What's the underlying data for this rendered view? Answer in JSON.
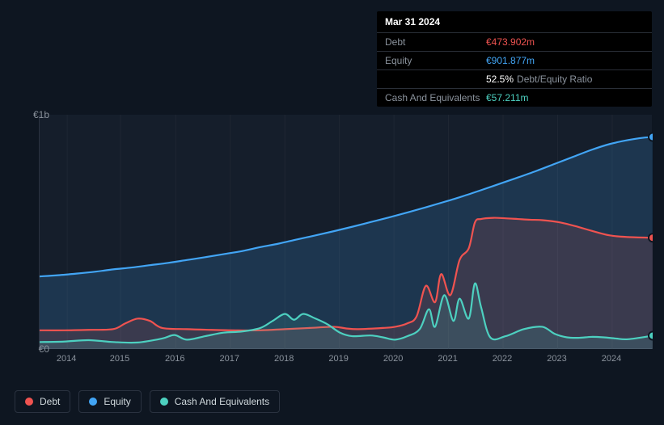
{
  "tooltip": {
    "date": "Mar 31 2024",
    "rows": [
      {
        "label": "Debt",
        "value": "€473.902m",
        "cls": "val-debt"
      },
      {
        "label": "Equity",
        "value": "€901.877m",
        "cls": "val-equity"
      },
      {
        "label": "",
        "value": "52.5%",
        "suffix": "Debt/Equity Ratio",
        "cls": "val-ratio"
      },
      {
        "label": "Cash And Equivalents",
        "value": "€57.211m",
        "cls": "val-cash"
      }
    ]
  },
  "chart": {
    "type": "area-line",
    "background_color": "#151e2b",
    "page_background": "#0e1621",
    "grid_color": "#1f2733",
    "y_axis": {
      "min": 0,
      "max": 1000,
      "labels": [
        {
          "v": 1000,
          "text": "€1b"
        },
        {
          "v": 0,
          "text": "€0"
        }
      ]
    },
    "x_axis": {
      "labels": [
        "2014",
        "2015",
        "2016",
        "2017",
        "2018",
        "2019",
        "2020",
        "2021",
        "2022",
        "2023",
        "2024"
      ],
      "positions": [
        0.045,
        0.132,
        0.222,
        0.311,
        0.4,
        0.489,
        0.578,
        0.667,
        0.756,
        0.845,
        0.934
      ]
    },
    "series": [
      {
        "name": "Equity",
        "color": "#42a5f5",
        "fill": "rgba(66,165,245,0.18)",
        "line_width": 2.2,
        "end_marker": true,
        "points": [
          [
            0.0,
            310
          ],
          [
            0.03,
            315
          ],
          [
            0.06,
            322
          ],
          [
            0.09,
            330
          ],
          [
            0.12,
            340
          ],
          [
            0.15,
            348
          ],
          [
            0.18,
            358
          ],
          [
            0.21,
            368
          ],
          [
            0.24,
            380
          ],
          [
            0.27,
            392
          ],
          [
            0.3,
            405
          ],
          [
            0.33,
            418
          ],
          [
            0.36,
            435
          ],
          [
            0.39,
            450
          ],
          [
            0.42,
            468
          ],
          [
            0.45,
            485
          ],
          [
            0.48,
            503
          ],
          [
            0.51,
            522
          ],
          [
            0.54,
            542
          ],
          [
            0.57,
            562
          ],
          [
            0.6,
            583
          ],
          [
            0.63,
            605
          ],
          [
            0.66,
            628
          ],
          [
            0.69,
            652
          ],
          [
            0.72,
            678
          ],
          [
            0.75,
            705
          ],
          [
            0.78,
            732
          ],
          [
            0.81,
            760
          ],
          [
            0.84,
            790
          ],
          [
            0.87,
            820
          ],
          [
            0.9,
            850
          ],
          [
            0.93,
            875
          ],
          [
            0.96,
            892
          ],
          [
            0.985,
            902
          ],
          [
            1.0,
            905
          ]
        ]
      },
      {
        "name": "Debt",
        "color": "#ef5350",
        "fill": "rgba(239,83,80,0.14)",
        "line_width": 2.2,
        "end_marker": true,
        "points": [
          [
            0.0,
            80
          ],
          [
            0.04,
            80
          ],
          [
            0.08,
            82
          ],
          [
            0.12,
            85
          ],
          [
            0.14,
            110
          ],
          [
            0.16,
            130
          ],
          [
            0.18,
            120
          ],
          [
            0.2,
            90
          ],
          [
            0.24,
            85
          ],
          [
            0.28,
            82
          ],
          [
            0.32,
            80
          ],
          [
            0.36,
            80
          ],
          [
            0.4,
            85
          ],
          [
            0.44,
            90
          ],
          [
            0.48,
            95
          ],
          [
            0.5,
            88
          ],
          [
            0.52,
            85
          ],
          [
            0.56,
            90
          ],
          [
            0.58,
            95
          ],
          [
            0.6,
            110
          ],
          [
            0.615,
            140
          ],
          [
            0.63,
            270
          ],
          [
            0.645,
            200
          ],
          [
            0.655,
            320
          ],
          [
            0.67,
            230
          ],
          [
            0.685,
            380
          ],
          [
            0.7,
            430
          ],
          [
            0.71,
            540
          ],
          [
            0.72,
            555
          ],
          [
            0.74,
            560
          ],
          [
            0.76,
            558
          ],
          [
            0.78,
            555
          ],
          [
            0.8,
            552
          ],
          [
            0.82,
            550
          ],
          [
            0.85,
            540
          ],
          [
            0.88,
            520
          ],
          [
            0.9,
            505
          ],
          [
            0.93,
            485
          ],
          [
            0.96,
            478
          ],
          [
            1.0,
            475
          ]
        ]
      },
      {
        "name": "Cash And Equivalents",
        "color": "#4dd0c0",
        "fill": "rgba(77,208,192,0.14)",
        "line_width": 2.2,
        "end_marker": true,
        "points": [
          [
            0.0,
            30
          ],
          [
            0.04,
            32
          ],
          [
            0.08,
            38
          ],
          [
            0.12,
            30
          ],
          [
            0.16,
            28
          ],
          [
            0.2,
            45
          ],
          [
            0.22,
            60
          ],
          [
            0.24,
            40
          ],
          [
            0.27,
            55
          ],
          [
            0.3,
            70
          ],
          [
            0.33,
            75
          ],
          [
            0.36,
            90
          ],
          [
            0.38,
            120
          ],
          [
            0.4,
            150
          ],
          [
            0.415,
            125
          ],
          [
            0.43,
            150
          ],
          [
            0.45,
            130
          ],
          [
            0.47,
            105
          ],
          [
            0.49,
            70
          ],
          [
            0.51,
            55
          ],
          [
            0.54,
            58
          ],
          [
            0.56,
            50
          ],
          [
            0.58,
            40
          ],
          [
            0.6,
            55
          ],
          [
            0.62,
            85
          ],
          [
            0.635,
            170
          ],
          [
            0.645,
            95
          ],
          [
            0.66,
            230
          ],
          [
            0.675,
            120
          ],
          [
            0.685,
            215
          ],
          [
            0.7,
            130
          ],
          [
            0.71,
            280
          ],
          [
            0.72,
            180
          ],
          [
            0.735,
            50
          ],
          [
            0.76,
            55
          ],
          [
            0.79,
            85
          ],
          [
            0.82,
            95
          ],
          [
            0.84,
            65
          ],
          [
            0.86,
            50
          ],
          [
            0.88,
            48
          ],
          [
            0.9,
            52
          ],
          [
            0.92,
            50
          ],
          [
            0.94,
            45
          ],
          [
            0.96,
            42
          ],
          [
            1.0,
            57
          ]
        ]
      }
    ],
    "legend": [
      {
        "name": "Debt",
        "color": "#ef5350"
      },
      {
        "name": "Equity",
        "color": "#42a5f5"
      },
      {
        "name": "Cash And Equivalents",
        "color": "#4dd0c0"
      }
    ]
  }
}
